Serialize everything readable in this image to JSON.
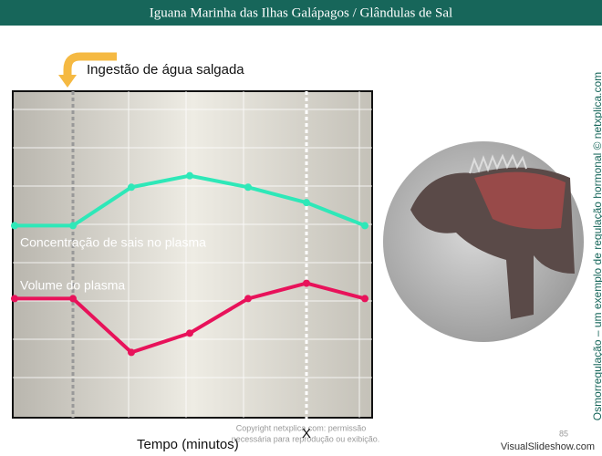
{
  "header": {
    "title": "Iguana Marinha das Ilhas Galápagos / Glândulas de Sal"
  },
  "chart_data": {
    "type": "line",
    "annotation": "Ingestão de água salgada",
    "xlabel": "Tempo (minutos)",
    "categories": [
      null,
      null,
      null,
      null,
      null,
      "X",
      null
    ],
    "ylim": [
      0,
      8.5
    ],
    "series": [
      {
        "name": "Concentração de sais no plasma",
        "color": "#2ee8b8",
        "values": [
          5.0,
          5.0,
          6.0,
          6.3,
          6.0,
          5.6,
          5.0
        ]
      },
      {
        "name": "Volume do plasma",
        "color": "#e8125a",
        "values": [
          3.1,
          3.1,
          1.7,
          2.2,
          3.1,
          3.5,
          3.1
        ]
      }
    ]
  },
  "side_text": "Osmorregulação – um exemplo de regulação hormonal © netxplica.com",
  "copyright": [
    "Copyright netxplica.com: permissão",
    "necessária para reprodução ou exibição."
  ],
  "page_number": "85",
  "watermark": "VisualSlideshow.com"
}
